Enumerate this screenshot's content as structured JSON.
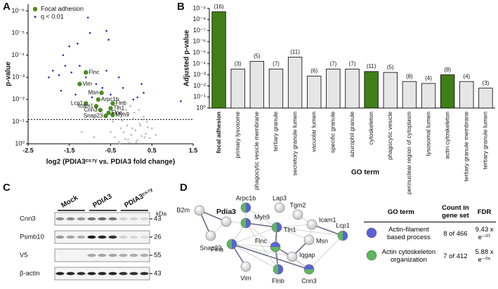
{
  "panels": [
    "A",
    "B",
    "C",
    "D"
  ],
  "chart_data": [
    {
      "type": "scatter",
      "xlabel": "log2 (PDIA3ᶜ⁵⁷ʸ vs. PDIA3 fold change)",
      "ylabel": "p-value",
      "log_y": true,
      "xlim": [
        -2.5,
        1.5
      ],
      "xticks": [
        -2.5,
        -1.5,
        -0.5,
        0.5,
        1.5
      ],
      "ylim": [
        1,
        5e-07
      ],
      "yticks": [
        {
          "value": 1,
          "label": "10⁰"
        },
        {
          "value": 0.1,
          "label": "10⁻¹"
        },
        {
          "value": 0.01,
          "label": "10⁻²"
        },
        {
          "value": 0.001,
          "label": "10⁻³"
        },
        {
          "value": 0.0001,
          "label": "10⁻⁴"
        },
        {
          "value": 1e-05,
          "label": "10⁻⁵"
        },
        {
          "value": 1e-06,
          "label": "10⁻⁶"
        }
      ],
      "hline": 0.08,
      "series": [
        {
          "name": "Focal adhesion",
          "color": "#4a8a1e",
          "x": [
            -1.1,
            -1.25,
            -0.72,
            -0.8,
            -1.1,
            -0.85,
            -0.45,
            -0.5,
            -0.75,
            -0.55,
            -0.45,
            -0.62
          ],
          "values": [
            0.0006,
            0.002,
            0.005,
            0.01,
            0.015,
            0.02,
            0.015,
            0.025,
            0.03,
            0.04,
            0.05,
            0.055
          ],
          "point_labels": [
            "Flnc",
            "Vim",
            "Msn",
            "Arpc1b",
            "Lcp1",
            "Icam1",
            "Flnb",
            "Tln1",
            "Cnn3",
            "Flna",
            "Myh9",
            "Snap23"
          ]
        },
        {
          "name": "q < 0.01",
          "color": "#2b2bb0",
          "x": [
            -1.05,
            -1.0,
            -1.3,
            -0.6,
            -0.55,
            -1.5,
            -1.65,
            -1.9,
            -2.0,
            -1.75,
            -1.6,
            -1.45,
            -1.25,
            -1.1,
            -0.85,
            -0.6,
            -0.7,
            -0.5,
            -0.3,
            -0.2,
            0.25,
            0.3,
            0.05,
            0.15,
            1.2,
            -1.7,
            -1.35,
            -0.95
          ],
          "values": [
            2e-06,
            1e-05,
            3e-05,
            8e-06,
            2e-05,
            4e-05,
            0.0001,
            0.0005,
            0.001,
            0.0008,
            0.0003,
            0.0006,
            0.0003,
            0.001,
            0.002,
            0.0005,
            0.003,
            0.006,
            0.001,
            0.003,
            0.002,
            0.005,
            0.01,
            0.008,
            0.012,
            0.004,
            0.006,
            0.008
          ]
        },
        {
          "color": "#b8b8b8",
          "x": [
            -0.5,
            -0.45,
            -0.4,
            -0.35,
            -0.3,
            -0.25,
            -0.2,
            -0.15,
            -0.1,
            -0.05,
            0.0,
            0.05,
            0.1,
            0.15,
            0.2,
            0.25,
            0.3,
            0.35,
            0.4,
            0.45,
            -0.42,
            -0.32,
            -0.22,
            -0.12,
            -0.02,
            0.08,
            0.18,
            0.28,
            0.38,
            -0.28,
            -0.08,
            0.12,
            0.32,
            -0.18,
            0.02,
            0.22,
            -1.2,
            -0.9,
            0.6,
            0.5
          ],
          "values": [
            0.3,
            0.1,
            0.5,
            0.05,
            0.8,
            0.2,
            0.03,
            0.6,
            0.15,
            0.9,
            0.4,
            0.07,
            0.25,
            0.7,
            0.12,
            0.45,
            0.06,
            0.35,
            0.18,
            0.55,
            0.04,
            0.02,
            0.09,
            0.03,
            0.02,
            0.04,
            0.03,
            0.08,
            0.1,
            0.95,
            0.65,
            0.85,
            0.5,
            0.3,
            0.2,
            0.15,
            0.3,
            0.5,
            0.4,
            0.2
          ]
        }
      ]
    },
    {
      "type": "bar",
      "ylabel": "Adjusted p-value",
      "xlabel": "GO term",
      "log_y": true,
      "categories": [
        "focal adhesion",
        "primary lysosome",
        "phagocytic vesicle membrane",
        "tertiary granule",
        "secretory granule lumen",
        "vacuolar lumen",
        "specific granule",
        "azurophil granule",
        "cytoskeleton",
        "phagocytic vesicle",
        "perinuclear region of cytoplasm",
        "lysosomal lumen",
        "actin cytoskeleton",
        "tertiary granule membrane",
        "tertiary granule lumen"
      ],
      "values": [
        2e-09,
        0.0003,
        6e-05,
        0.0003,
        2.5e-05,
        0.0013,
        0.0003,
        0.0003,
        0.0005,
        0.0006,
        0.004,
        0.006,
        0.001,
        0.004,
        0.016
      ],
      "count_labels": [
        "(16)",
        "(3)",
        "(5)",
        "(7)",
        "(11)",
        "(6)",
        "(7)",
        "(7)",
        "(11)",
        "(5)",
        "(8)",
        "(4)",
        "(8)",
        "(4)",
        "(3)"
      ],
      "colors": [
        "#3f7f17",
        "#e6e6e6",
        "#e6e6e6",
        "#e6e6e6",
        "#e6e6e6",
        "#e6e6e6",
        "#e6e6e6",
        "#e6e6e6",
        "#3f7f17",
        "#e6e6e6",
        "#e6e6e6",
        "#e6e6e6",
        "#3f7f17",
        "#e6e6e6",
        "#e6e6e6"
      ],
      "ylim": [
        1,
        1e-09
      ],
      "yticks": [
        {
          "value": 1,
          "label": "10⁰"
        },
        {
          "value": 0.1,
          "label": "10⁻¹"
        },
        {
          "value": 0.01,
          "label": "10⁻²"
        },
        {
          "value": 0.001,
          "label": "10⁻³"
        },
        {
          "value": 0.0001,
          "label": "10⁻⁴"
        },
        {
          "value": 1e-05,
          "label": "10⁻⁵"
        },
        {
          "value": 1e-06,
          "label": "10⁻⁶"
        },
        {
          "value": 1e-07,
          "label": "10⁻⁷"
        },
        {
          "value": 1e-08,
          "label": "10⁻⁸"
        },
        {
          "value": 1e-09,
          "label": "10⁻⁹"
        }
      ]
    }
  ],
  "blot": {
    "groups": [
      "Mock",
      "PDIA3",
      "PDIA3ᶜ⁵⁷ʸ"
    ],
    "unit": "kDa",
    "rows": [
      {
        "label": "Cnn3",
        "kda": 43
      },
      {
        "label": "Psmb10",
        "kda": 26
      },
      {
        "label": "V5",
        "kda": 55
      },
      {
        "label": "β-actin",
        "kda": 43
      }
    ]
  },
  "network": {
    "nodes": [
      "Pdia3",
      "B2m",
      "Snap23",
      "Arpc1b",
      "Myh9",
      "Lap3",
      "Tgm2",
      "Icam1",
      "Lcp1",
      "Tln1",
      "Flnc",
      "Msn",
      "Iqgap",
      "Flna",
      "Vim",
      "Flnb",
      "Cnn3"
    ]
  },
  "table": {
    "header": [
      "GO term",
      "Count in gene set",
      "FDR"
    ],
    "rows": [
      [
        "Actin-filament based process",
        "8 of 466",
        "9.43 x e⁻⁰⁷"
      ],
      [
        "Actin cytoskeleton organization",
        "7 of 412",
        "5.88 x e⁻⁰⁶"
      ]
    ]
  }
}
